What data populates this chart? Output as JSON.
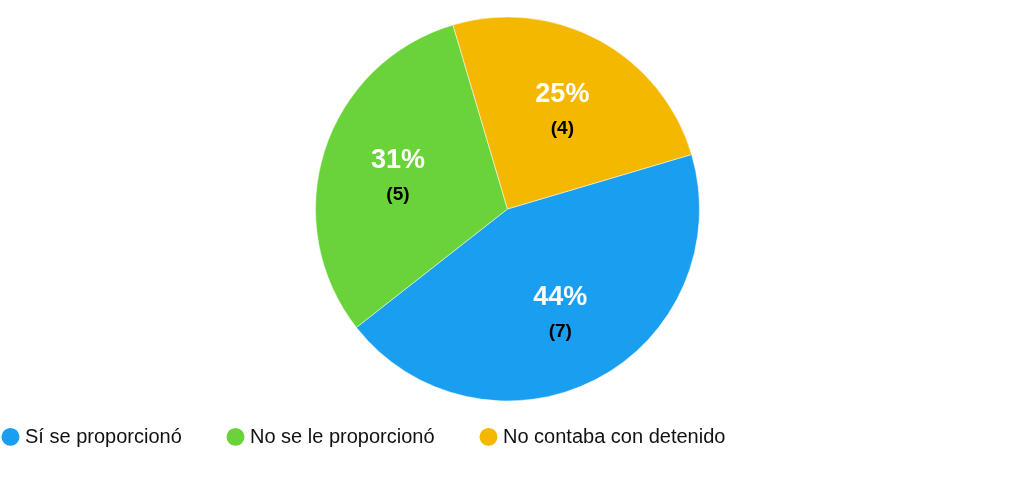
{
  "chart_data": {
    "type": "pie",
    "categories": [
      "Sí se proporcionó",
      "No se le proporcionó",
      "No contaba con detenido"
    ],
    "values": [
      44,
      31,
      25
    ],
    "colors": [
      "#1a9ff0",
      "#6bd33a",
      "#f5b800"
    ],
    "value_labels": [
      "44%\n(7)",
      "31%\n(5)",
      "25%\n(4)"
    ],
    "legend": "bottom"
  }
}
